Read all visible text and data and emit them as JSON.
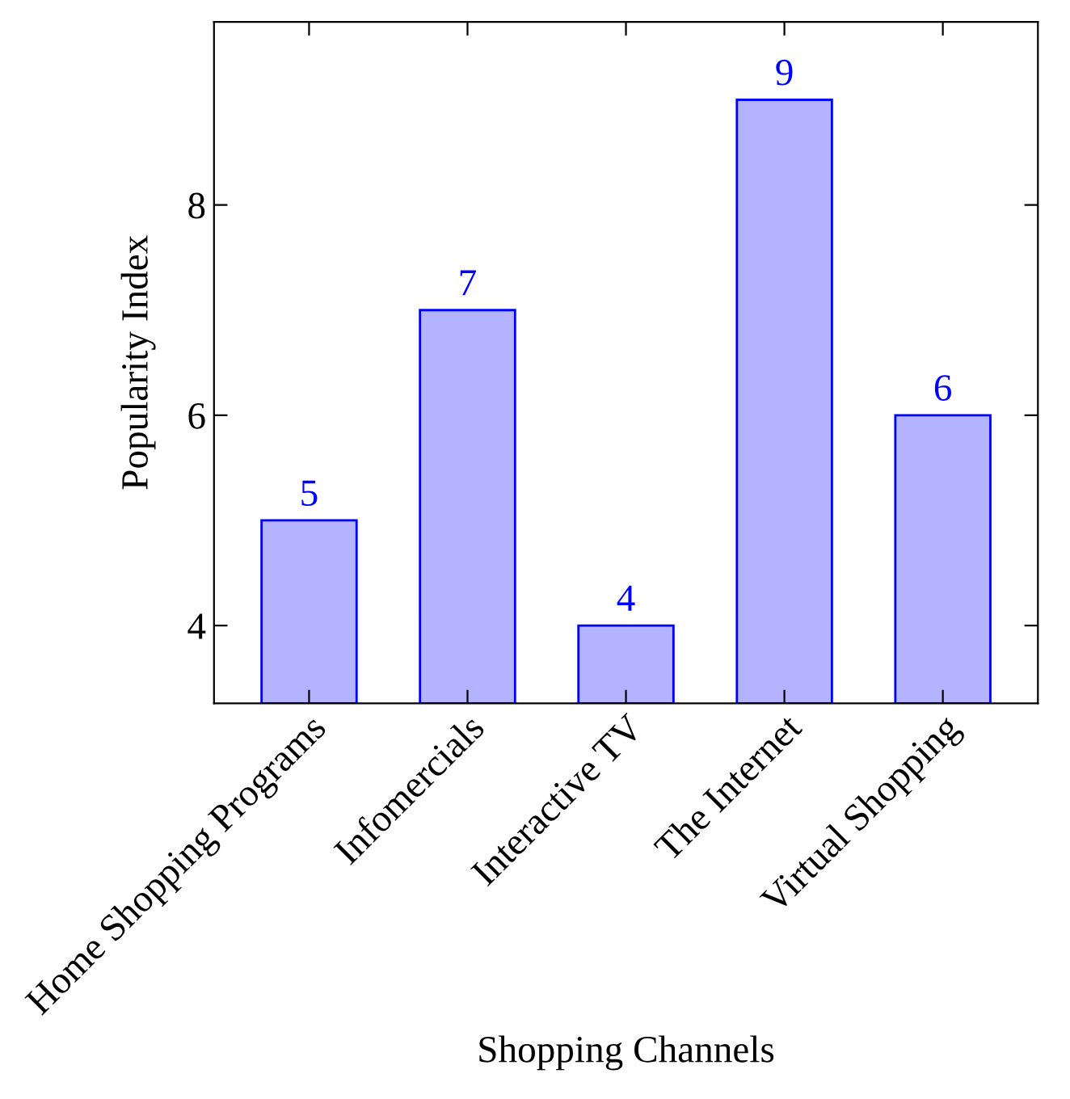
{
  "chart_data": {
    "type": "bar",
    "xlabel": "Shopping Channels",
    "ylabel": "Popularity Index",
    "categories": [
      "Home Shopping Programs",
      "Infomercials",
      "Interactive TV",
      "The Internet",
      "Virtual Shopping"
    ],
    "values": [
      5,
      7,
      4,
      9,
      6
    ],
    "color": "#b3b3ff",
    "ylim": [
      3.26,
      9.74
    ],
    "yticks": [
      4,
      6,
      8
    ],
    "grid": false,
    "data_labels": true
  }
}
